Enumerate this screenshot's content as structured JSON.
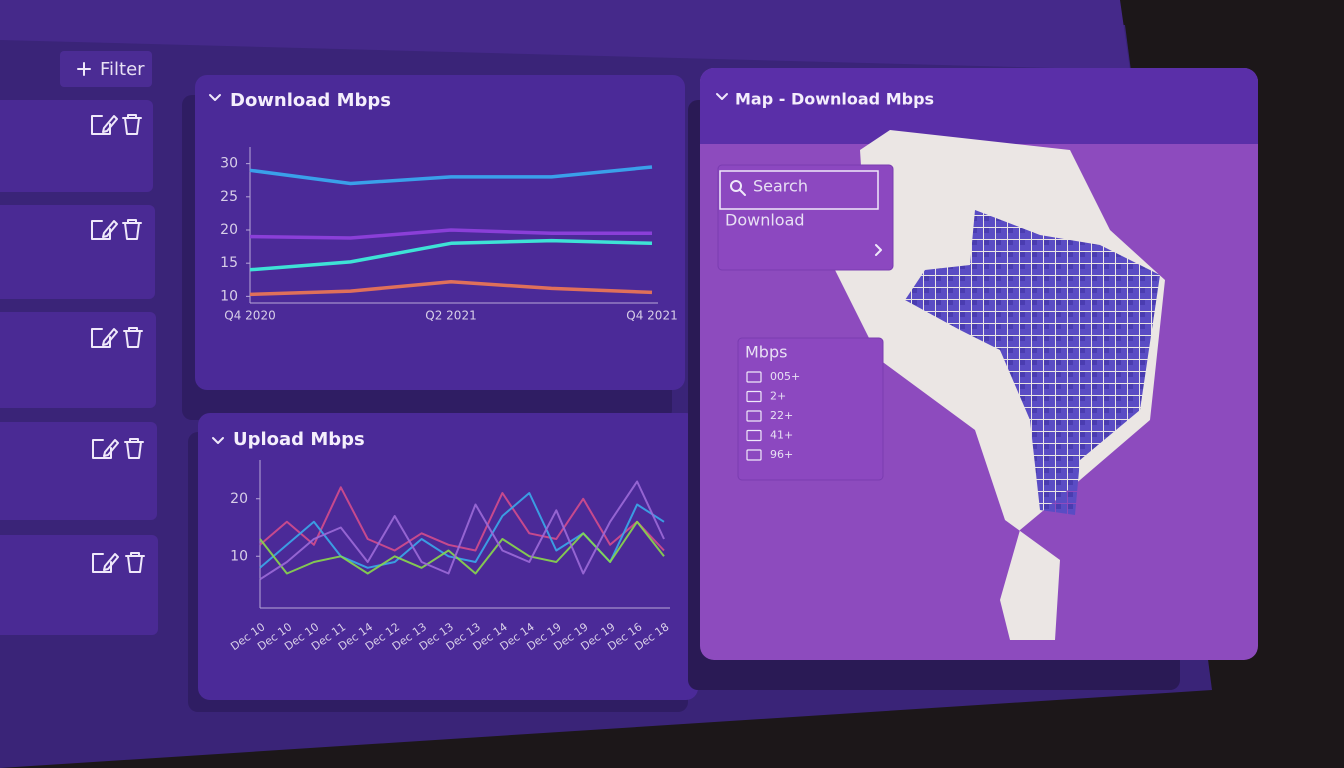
{
  "sidebar": {
    "filter": "Filter"
  },
  "chart_data": [
    {
      "type": "line",
      "title": "Download Mbps",
      "categories": [
        "Q4 2020",
        null,
        "Q2 2021",
        null,
        "Q4 2021"
      ],
      "ylim": [
        9,
        31
      ],
      "yticks": [
        10,
        15,
        20,
        25,
        30
      ],
      "series": [
        {
          "color": "#3aa0ea",
          "values": [
            29,
            27,
            28,
            28,
            29.5
          ]
        },
        {
          "color": "#8a3fd8",
          "values": [
            19,
            18.8,
            20,
            19.5,
            19.5
          ]
        },
        {
          "color": "#3ee2d6",
          "values": [
            14,
            15.2,
            18,
            18.4,
            18
          ]
        },
        {
          "color": "#e0705a",
          "values": [
            10.3,
            10.8,
            12.2,
            11.2,
            10.6
          ]
        }
      ]
    },
    {
      "type": "line",
      "title": "Upload Mbps",
      "categories": [
        "Dec 10",
        "Dec 10",
        "Dec 10",
        "Dec 11",
        "Dec 14",
        "Dec 12",
        "Dec 13",
        "Dec 13",
        "Dec 13",
        "Dec 14",
        "Dec 14",
        "Dec 19",
        "Dec 19",
        "Dec 19",
        "Dec 16",
        "Dec 18"
      ],
      "ylim": [
        1,
        25
      ],
      "yticks": [
        10,
        20
      ],
      "series": [
        {
          "color": "#d44c8c",
          "values": [
            12,
            16,
            12,
            22,
            13,
            11,
            14,
            12,
            11,
            21,
            14,
            13,
            20,
            12,
            16,
            11
          ]
        },
        {
          "color": "#3aa8ea",
          "values": [
            8,
            12,
            16,
            10,
            8,
            9,
            13,
            10,
            9,
            17,
            21,
            11,
            14,
            9,
            19,
            16
          ]
        },
        {
          "color": "#8ad84a",
          "values": [
            13,
            7,
            9,
            10,
            7,
            10,
            8,
            11,
            7,
            13,
            10,
            9,
            14,
            9,
            16,
            10
          ]
        },
        {
          "color": "#9c6ad8",
          "values": [
            6,
            9,
            13,
            15,
            9,
            17,
            9,
            7,
            19,
            11,
            9,
            18,
            7,
            16,
            23,
            13
          ]
        }
      ]
    }
  ],
  "map": {
    "title": "Map - Download Mbps",
    "search": "Search",
    "layer": "Download",
    "legend_title": "Mbps",
    "legend_items": [
      "005+",
      "2+",
      "22+",
      "41+",
      "96+"
    ]
  }
}
